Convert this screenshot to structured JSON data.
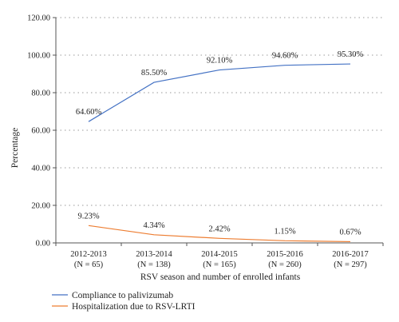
{
  "chart_data": {
    "type": "line",
    "title": "",
    "xlabel": "RSV season and number of enrolled infants",
    "ylabel": "Percentage",
    "ylim": [
      0,
      120
    ],
    "yticks": [
      "0.00",
      "20.00",
      "40.00",
      "60.00",
      "80.00",
      "100.00",
      "120.00"
    ],
    "grid": "horizontal dotted",
    "legend_position": "bottom-left",
    "categories": [
      {
        "season": "2012-2013",
        "n_label": "(N = 65)"
      },
      {
        "season": "2013-2014",
        "n_label": "(N = 138)"
      },
      {
        "season": "2014-2015",
        "n_label": "(N = 165)"
      },
      {
        "season": "2015-2016",
        "n_label": "(N = 260)"
      },
      {
        "season": "2016-2017",
        "n_label": "(N = 297)"
      }
    ],
    "series": [
      {
        "name": "Compliance to palivizumab",
        "color": "#4472c4",
        "values": [
          64.6,
          85.5,
          92.1,
          94.6,
          95.3
        ],
        "labels": [
          "64.60%",
          "85.50%",
          "92.10%",
          "94.60%",
          "95.30%"
        ]
      },
      {
        "name": "Hospitalization due to RSV-LRTI",
        "color": "#ed7d31",
        "values": [
          9.23,
          4.34,
          2.42,
          1.15,
          0.67
        ],
        "labels": [
          "9.23%",
          "4.34%",
          "2.42%",
          "1.15%",
          "0.67%"
        ]
      }
    ]
  }
}
